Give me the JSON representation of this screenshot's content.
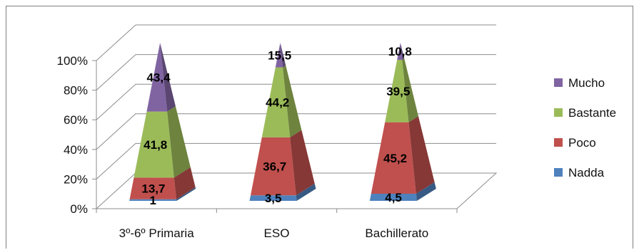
{
  "chart_data": {
    "type": "pyramid-100-stacked",
    "categories": [
      "3º-6º Primaria",
      "ESO",
      "Bachillerato"
    ],
    "series": [
      {
        "name": "Nadda",
        "values": [
          1,
          3.5,
          4.5
        ],
        "labels": [
          "1",
          "3,5",
          "4,5"
        ],
        "color": "#4f81bd"
      },
      {
        "name": "Poco",
        "values": [
          13.7,
          36.7,
          45.2
        ],
        "labels": [
          "13,7",
          "36,7",
          "45,2"
        ],
        "color": "#c0504d"
      },
      {
        "name": "Bastante",
        "values": [
          41.8,
          44.2,
          39.5
        ],
        "labels": [
          "41,8",
          "44,2",
          "39,5"
        ],
        "color": "#9bbb59"
      },
      {
        "name": "Mucho",
        "values": [
          43.4,
          15.5,
          10.8
        ],
        "labels": [
          "43,4",
          "15,5",
          "10,8"
        ],
        "color": "#8064a2"
      }
    ],
    "yticks": [
      "0%",
      "20%",
      "40%",
      "60%",
      "80%",
      "100%"
    ],
    "ylim": [
      0,
      100
    ],
    "legend_position": "right",
    "legend_order": [
      "Mucho",
      "Bastante",
      "Poco",
      "Nadda"
    ],
    "grid": true
  }
}
